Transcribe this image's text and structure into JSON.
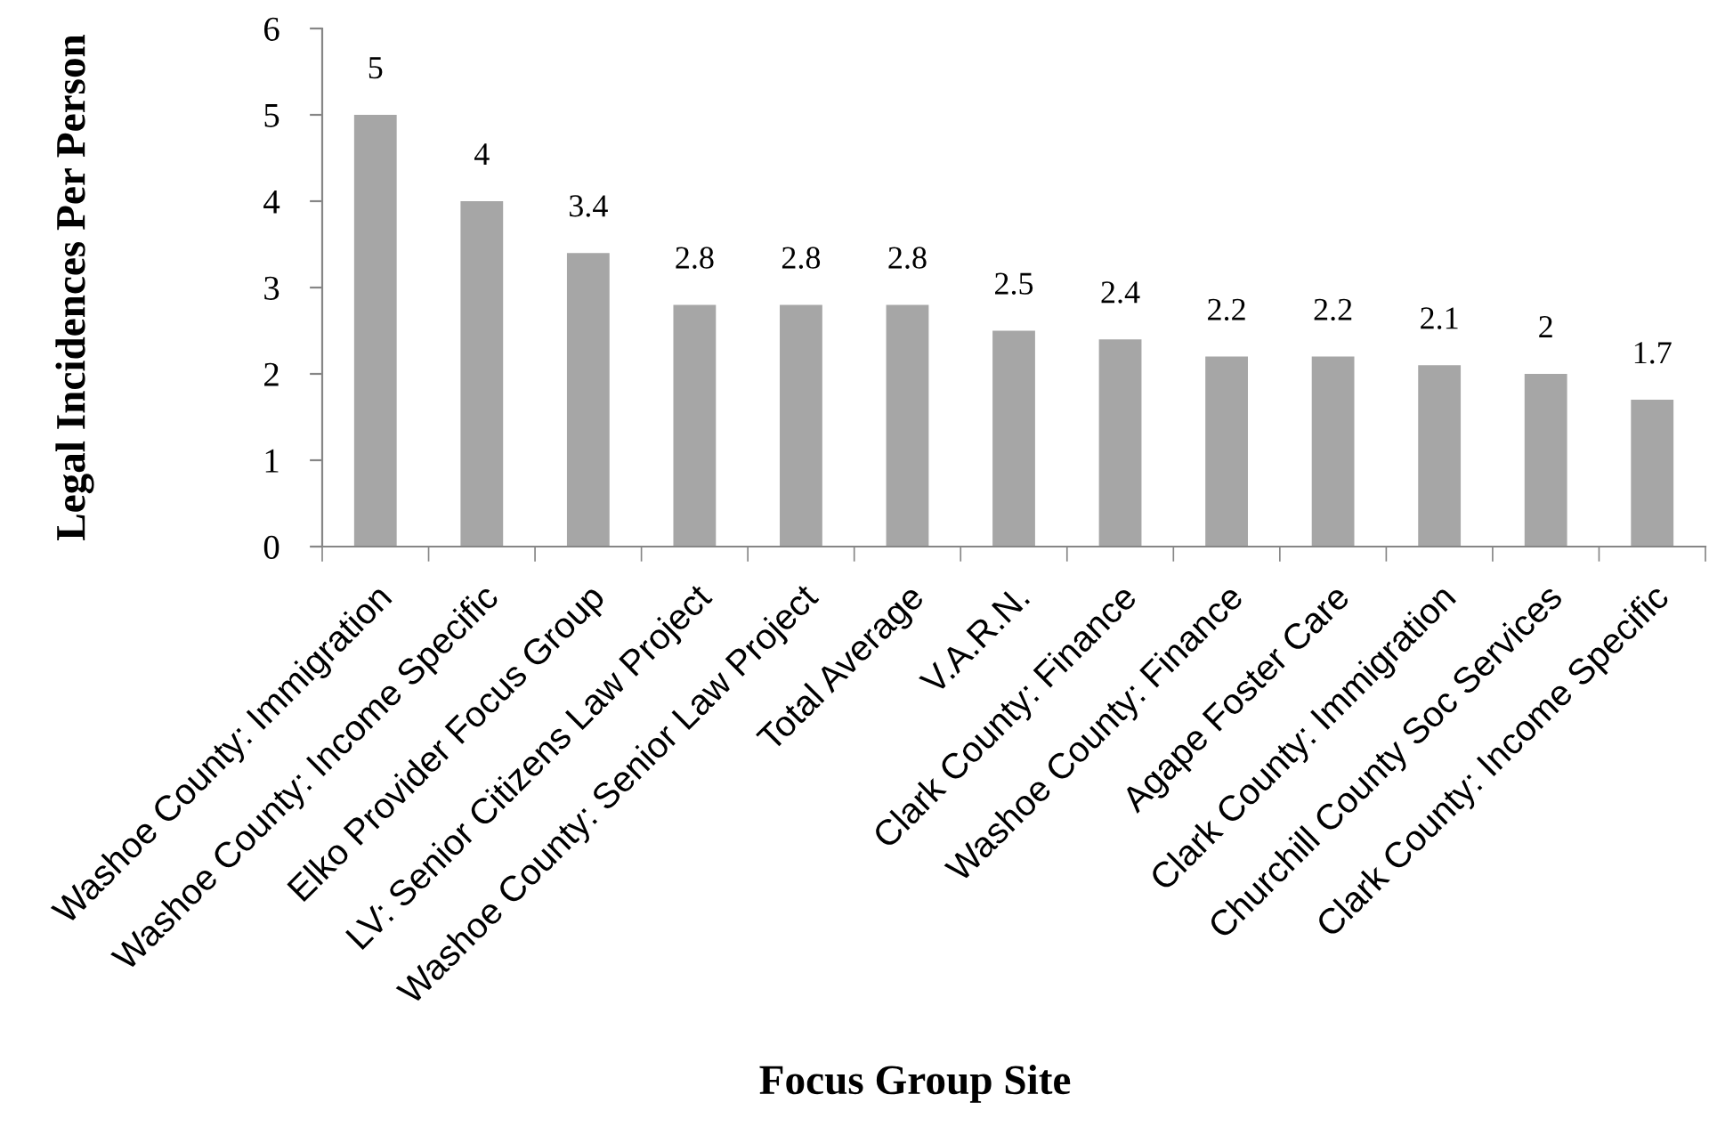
{
  "chart_data": {
    "type": "bar",
    "xlabel": "Focus Group Site",
    "ylabel": "Legal Incidences Per Person",
    "categories": [
      "Washoe County: Immigration",
      "Washoe County: Income Specific",
      "Elko Provider Focus Group",
      "LV: Senior Citizens Law Project",
      "Washoe County: Senior Law Project",
      "Total Average",
      "V.A.R.N.",
      "Clark County: Finance",
      "Washoe County: Finance",
      "Agape Foster Care",
      "Clark County: Immigration",
      "Churchill County Soc Services",
      "Clark County: Income Specific"
    ],
    "values": [
      5,
      4,
      3.4,
      2.8,
      2.8,
      2.8,
      2.5,
      2.4,
      2.2,
      2.2,
      2.1,
      2,
      1.7
    ],
    "color": "#a6a6a6",
    "ylim": [
      0,
      6
    ],
    "yticks": [
      0,
      1,
      2,
      3,
      4,
      5,
      6
    ],
    "data_labels": true
  }
}
